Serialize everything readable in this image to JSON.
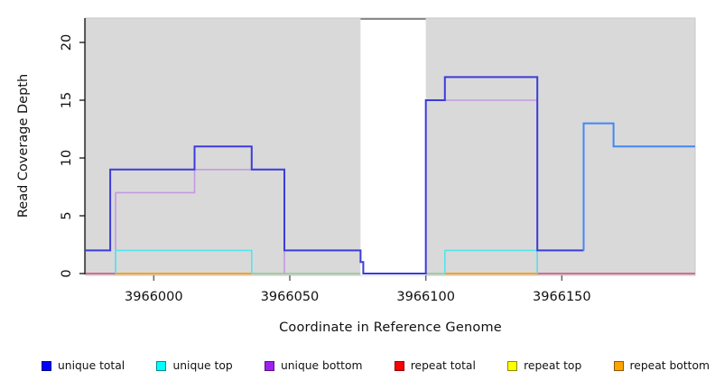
{
  "chart_data": {
    "type": "line",
    "subtype": "step-coverage",
    "title": "",
    "xlabel": "Coordinate in Reference Genome",
    "ylabel": "Read Coverage Depth",
    "xlim": [
      3965975,
      3966199
    ],
    "ylim": [
      0,
      22.1
    ],
    "x_ticks": [
      "3966000",
      "3966050",
      "3966100",
      "3966150"
    ],
    "x_tick_values": [
      3966000,
      3966050,
      3966100,
      3966150
    ],
    "y_ticks": [
      "0",
      "5",
      "10",
      "15",
      "20"
    ],
    "y_tick_values": [
      0,
      5,
      10,
      15,
      20
    ],
    "grid": false,
    "panel_color": "#d9d9d9",
    "gap_band": {
      "x0": 3966076,
      "x1": 3966100,
      "color": "#ffffff",
      "top_line_color": "#8a8a8a"
    },
    "series": [
      {
        "name": "baseline repeat total left",
        "color": "#d6487e",
        "width": 1.5,
        "points": [
          [
            3965975,
            0
          ],
          [
            3965986,
            0
          ]
        ]
      },
      {
        "name": "baseline repeat bottom left",
        "color": "#ff9a00",
        "width": 1.8,
        "points": [
          [
            3965986,
            0
          ],
          [
            3966036,
            0
          ]
        ]
      },
      {
        "name": "baseline pale green left",
        "color": "#8fc98f",
        "width": 1.5,
        "points": [
          [
            3966036,
            0
          ],
          [
            3966076,
            0
          ]
        ]
      },
      {
        "name": "baseline pale green right",
        "color": "#8fc98f",
        "width": 1.5,
        "points": [
          [
            3966100,
            0
          ],
          [
            3966107,
            0
          ]
        ]
      },
      {
        "name": "baseline repeat bottom right",
        "color": "#ff9a00",
        "width": 1.8,
        "points": [
          [
            3966107,
            0
          ],
          [
            3966141,
            0
          ]
        ]
      },
      {
        "name": "baseline repeat total right",
        "color": "#d6487e",
        "width": 1.5,
        "points": [
          [
            3966141,
            0
          ],
          [
            3966199,
            0
          ]
        ]
      },
      {
        "name": "unique bottom left",
        "color": "#c49ae0",
        "width": 1.6,
        "points": [
          [
            3965986,
            0
          ],
          [
            3965986,
            7
          ],
          [
            3966015,
            7
          ],
          [
            3966015,
            9
          ],
          [
            3966048,
            9
          ],
          [
            3966048,
            0
          ]
        ]
      },
      {
        "name": "unique bottom right",
        "color": "#c49ae0",
        "width": 1.6,
        "points": [
          [
            3966100,
            0
          ],
          [
            3966100,
            15
          ],
          [
            3966141,
            15
          ],
          [
            3966141,
            0
          ]
        ]
      },
      {
        "name": "unique bottom far right",
        "color": "#c49ae0",
        "width": 1.6,
        "points": [
          [
            3966169,
            11
          ],
          [
            3966199,
            11
          ]
        ]
      },
      {
        "name": "unique top left",
        "color": "#55e4ea",
        "width": 1.6,
        "points": [
          [
            3965986,
            0
          ],
          [
            3965986,
            2
          ],
          [
            3966036,
            2
          ],
          [
            3966036,
            0
          ]
        ]
      },
      {
        "name": "unique top right",
        "color": "#55e4ea",
        "width": 1.6,
        "points": [
          [
            3966107,
            0
          ],
          [
            3966107,
            2
          ],
          [
            3966141,
            2
          ],
          [
            3966141,
            0
          ]
        ]
      },
      {
        "name": "unique total main",
        "color": "#3c3cdb",
        "width": 2,
        "points": [
          [
            3965975,
            2
          ],
          [
            3965984,
            2
          ],
          [
            3965984,
            9
          ],
          [
            3966015,
            9
          ],
          [
            3966015,
            11
          ],
          [
            3966036,
            11
          ],
          [
            3966036,
            9
          ],
          [
            3966048,
            9
          ],
          [
            3966048,
            2
          ],
          [
            3966076,
            2
          ],
          [
            3966076,
            1
          ],
          [
            3966077,
            1
          ],
          [
            3966077,
            0
          ],
          [
            3966100,
            0
          ],
          [
            3966100,
            15
          ],
          [
            3966107,
            15
          ],
          [
            3966107,
            17
          ],
          [
            3966141,
            17
          ],
          [
            3966141,
            2
          ],
          [
            3966158,
            2
          ]
        ]
      },
      {
        "name": "unique total far right",
        "color": "#4287f5",
        "width": 2,
        "points": [
          [
            3966158,
            2
          ],
          [
            3966158,
            13
          ],
          [
            3966169,
            13
          ],
          [
            3966169,
            11
          ],
          [
            3966199,
            11
          ]
        ]
      }
    ],
    "legend": [
      {
        "label": "unique total",
        "color": "#0000ff"
      },
      {
        "label": "unique top",
        "color": "#00ffff"
      },
      {
        "label": "unique bottom",
        "color": "#a020f0"
      },
      {
        "label": "repeat total",
        "color": "#ff0000"
      },
      {
        "label": "repeat top",
        "color": "#ffff00"
      },
      {
        "label": "repeat bottom",
        "color": "#ffa500"
      }
    ],
    "legend_position": "bottom"
  },
  "axis_style": {
    "y_axis_color": "#000000",
    "x_tick_color": "#666666",
    "tick_label_color": "#111111",
    "tick_font_px": 14.5
  }
}
